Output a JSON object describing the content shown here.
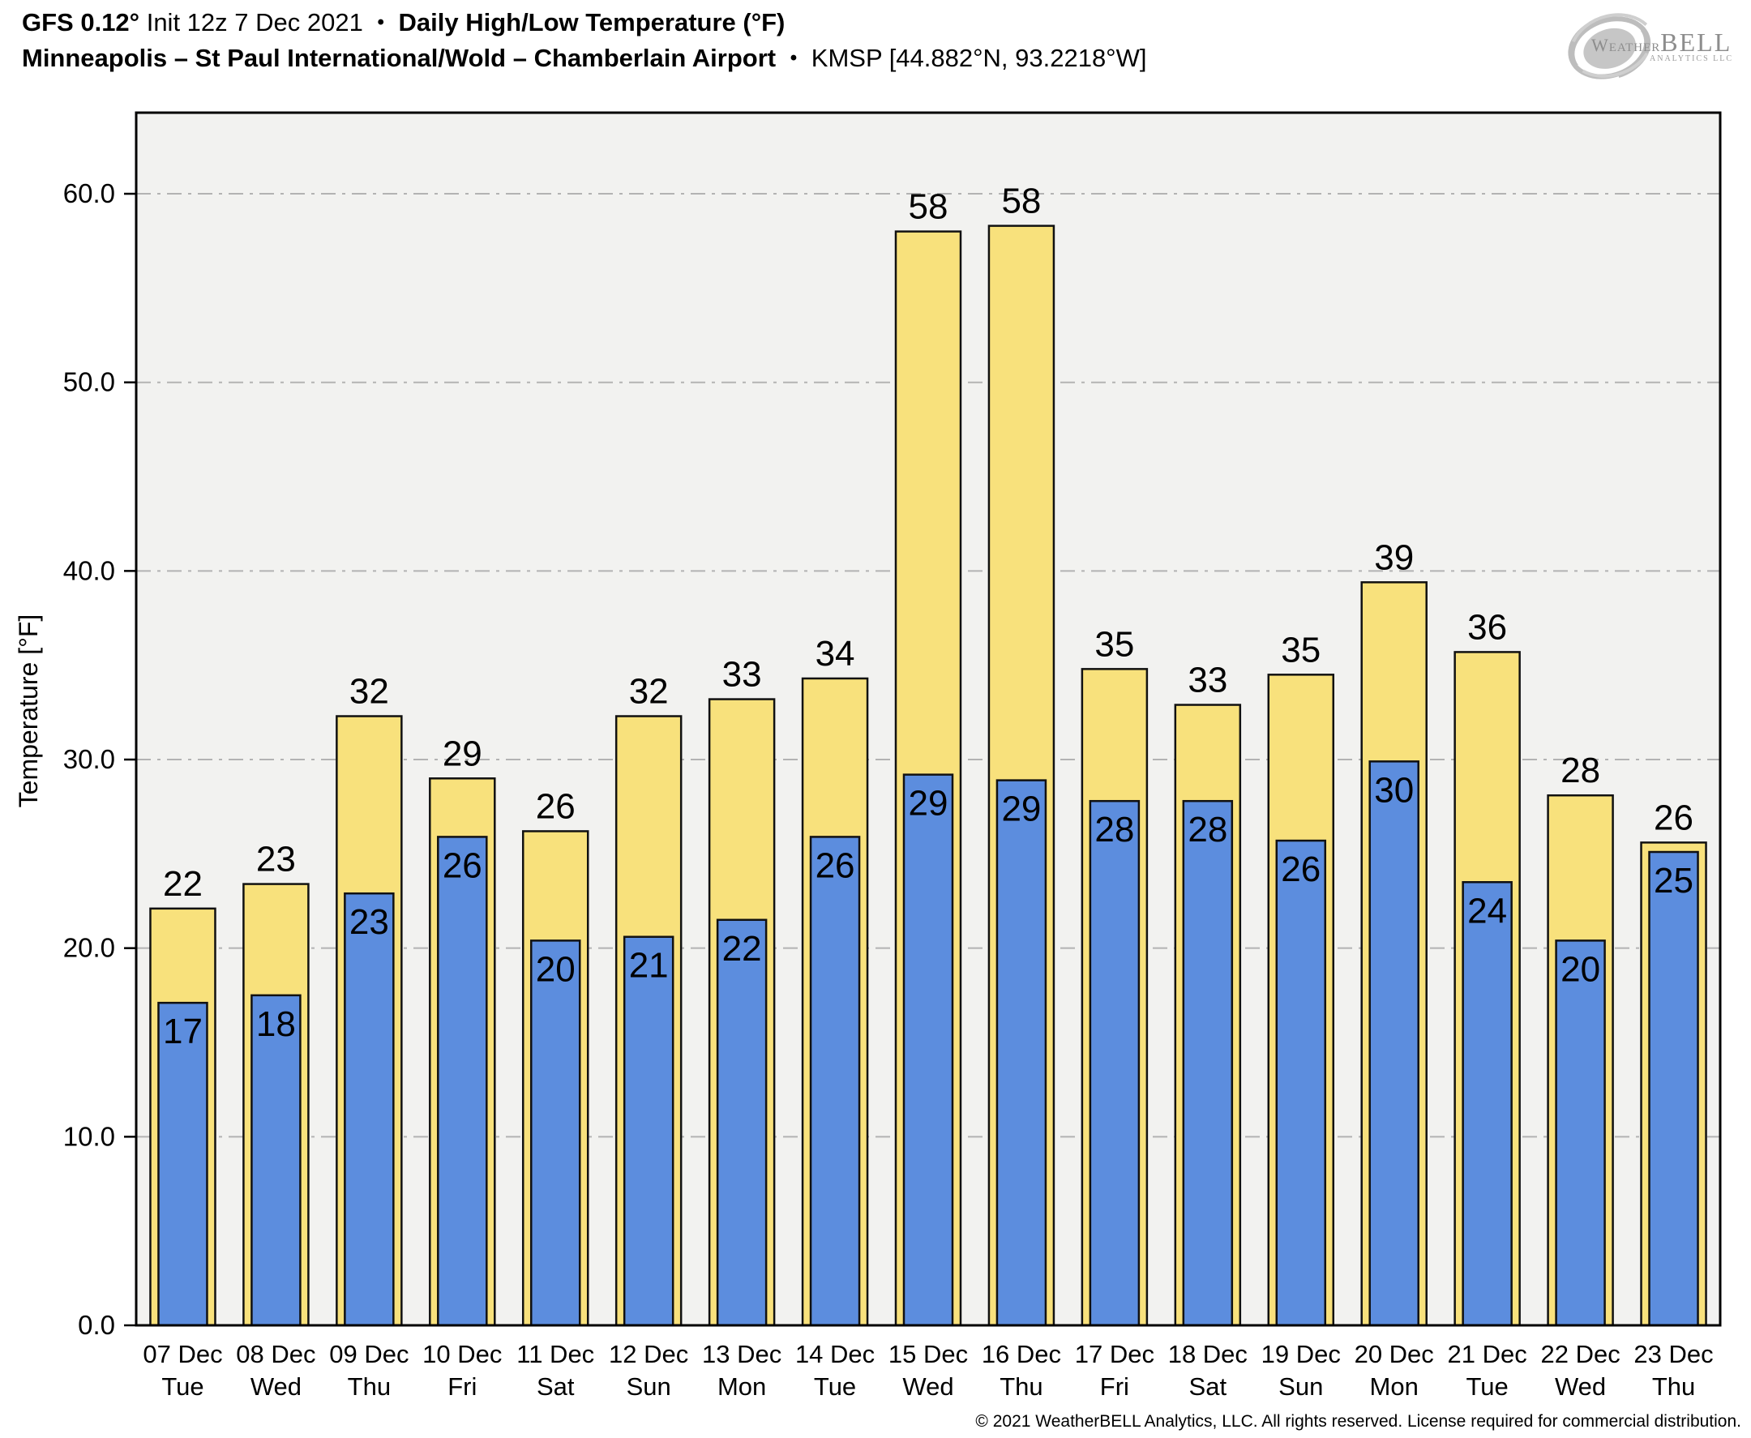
{
  "header": {
    "model": "GFS 0.12°",
    "init": "Init 12z 7 Dec 2021",
    "bullet": "•",
    "metric": "Daily High/Low Temperature (°F)",
    "station": "Minneapolis – St Paul International/Wold – Chamberlain Airport",
    "station_id": "KMSP [44.882°N, 93.2218°W]"
  },
  "logo": {
    "brand_a": "Weather",
    "brand_b": "BELL",
    "sub": "Analytics LLC"
  },
  "footer": {
    "copyright": "© 2021 WeatherBELL Analytics, LLC. All rights reserved. License required for commercial distribution."
  },
  "colors": {
    "plot_bg": "#F2F2F0",
    "grid": "#B3B3B3",
    "frame": "#000000",
    "bar_stroke": "#111111",
    "high_fill": "#F8E17C",
    "low_fill": "#5C8DDE",
    "swirl_gray": "#BDBDBD",
    "logo_gray": "#8D8D8D"
  },
  "chart_data": {
    "type": "bar",
    "title": "Daily High/Low Temperature (°F) — KMSP",
    "xlabel": "",
    "ylabel": "Temperature [°F]",
    "ylim": [
      0,
      64.3
    ],
    "yticks": [
      0,
      10,
      20,
      30,
      40,
      50,
      60
    ],
    "ytick_labels": [
      "0.0",
      "10.0",
      "20.0",
      "30.0",
      "40.0",
      "50.0",
      "60.0"
    ],
    "grid": "horizontal dash-dot",
    "legend": "none",
    "categories": [
      {
        "date": "07 Dec",
        "weekday": "Tue"
      },
      {
        "date": "08 Dec",
        "weekday": "Wed"
      },
      {
        "date": "09 Dec",
        "weekday": "Thu"
      },
      {
        "date": "10 Dec",
        "weekday": "Fri"
      },
      {
        "date": "11 Dec",
        "weekday": "Sat"
      },
      {
        "date": "12 Dec",
        "weekday": "Sun"
      },
      {
        "date": "13 Dec",
        "weekday": "Mon"
      },
      {
        "date": "14 Dec",
        "weekday": "Tue"
      },
      {
        "date": "15 Dec",
        "weekday": "Wed"
      },
      {
        "date": "16 Dec",
        "weekday": "Thu"
      },
      {
        "date": "17 Dec",
        "weekday": "Fri"
      },
      {
        "date": "18 Dec",
        "weekday": "Sat"
      },
      {
        "date": "19 Dec",
        "weekday": "Sun"
      },
      {
        "date": "20 Dec",
        "weekday": "Mon"
      },
      {
        "date": "21 Dec",
        "weekday": "Tue"
      },
      {
        "date": "22 Dec",
        "weekday": "Wed"
      },
      {
        "date": "23 Dec",
        "weekday": "Thu"
      }
    ],
    "series": [
      {
        "name": "high",
        "color": "#F8E17C",
        "labels": [
          22,
          23,
          32,
          29,
          26,
          32,
          33,
          34,
          58,
          58,
          35,
          33,
          35,
          39,
          36,
          28,
          26
        ],
        "values": [
          22.1,
          23.4,
          32.3,
          29.0,
          26.2,
          32.3,
          33.2,
          34.3,
          58.0,
          58.3,
          34.8,
          32.9,
          34.5,
          39.4,
          35.7,
          28.1,
          25.6
        ]
      },
      {
        "name": "low",
        "color": "#5C8DDE",
        "labels": [
          17,
          18,
          23,
          26,
          20,
          21,
          22,
          26,
          29,
          29,
          28,
          28,
          26,
          30,
          24,
          20,
          25
        ],
        "values": [
          17.1,
          17.5,
          22.9,
          25.9,
          20.4,
          20.6,
          21.5,
          25.9,
          29.2,
          28.9,
          27.8,
          27.8,
          25.7,
          29.9,
          23.5,
          20.4,
          25.1
        ]
      }
    ]
  }
}
